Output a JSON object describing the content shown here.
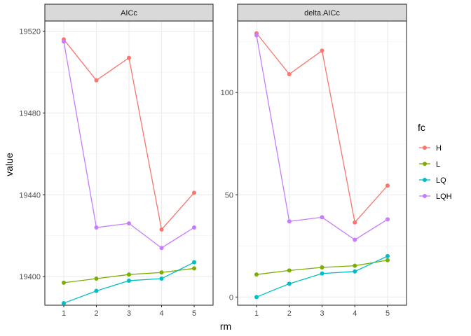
{
  "chart_data": {
    "type": "line",
    "xlabel": "rm",
    "ylabel": "value",
    "categories": [
      1,
      2,
      3,
      4,
      5
    ],
    "legend": {
      "title": "fc",
      "placement": "right"
    },
    "grid": true,
    "series_colors": {
      "H": "#F8766D",
      "L": "#7CAE00",
      "LQ": "#00BFC4",
      "LQH": "#C77CFF"
    },
    "panels": [
      {
        "strip": "AICc",
        "ylim": [
          19386,
          19525
        ],
        "yticks": [
          19400,
          19440,
          19480,
          19520
        ],
        "series": [
          {
            "name": "H",
            "values": [
              19516,
              19496,
              19507,
              19423,
              19441
            ]
          },
          {
            "name": "L",
            "values": [
              19397,
              19399,
              19401,
              19402,
              19404
            ]
          },
          {
            "name": "LQ",
            "values": [
              19387,
              19393,
              19398,
              19399,
              19407
            ]
          },
          {
            "name": "LQH",
            "values": [
              19515,
              19424,
              19426,
              19414,
              19424
            ]
          }
        ]
      },
      {
        "strip": "delta.AICc",
        "ylim": [
          -4,
          135
        ],
        "yticks": [
          0,
          50,
          100
        ],
        "series": [
          {
            "name": "H",
            "values": [
              129,
              109,
              120.5,
              36.5,
              54.5
            ]
          },
          {
            "name": "L",
            "values": [
              11,
              13,
              14.5,
              15.3,
              18
            ]
          },
          {
            "name": "LQ",
            "values": [
              0,
              6.5,
              11.5,
              12.5,
              20
            ]
          },
          {
            "name": "LQH",
            "values": [
              128,
              37,
              39,
              28,
              38
            ]
          }
        ]
      }
    ]
  }
}
